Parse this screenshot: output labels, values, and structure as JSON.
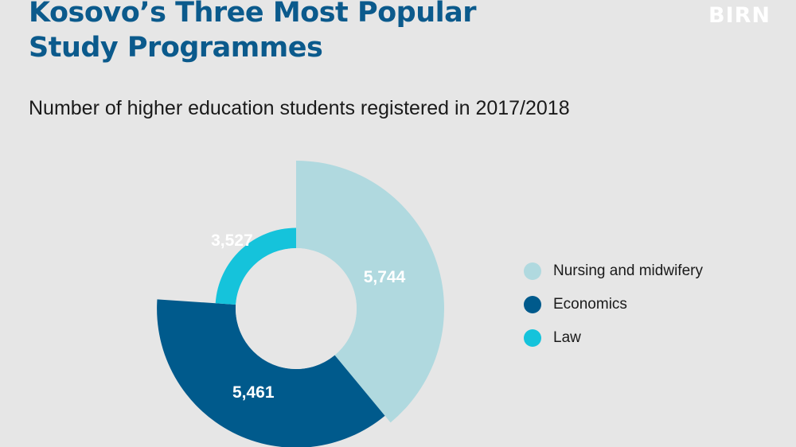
{
  "title_line1": "Kosovo’s Three Most Popular",
  "title_line2": "Study Programmes",
  "logo_text": "BIRN",
  "subtitle": "Number of higher education students registered in 2017/2018",
  "chart_data": {
    "type": "pie",
    "variant": "variable-radius donut",
    "title": "Kosovo’s Three Most Popular Study Programmes",
    "subtitle": "Number of higher education students registered in 2017/2018",
    "series": [
      {
        "name": "Nursing and midwifery",
        "value": 5744,
        "label": "5,744",
        "color": "#b0d9df"
      },
      {
        "name": "Economics",
        "value": 5461,
        "label": "5,461",
        "color": "#005a8c"
      },
      {
        "name": "Law",
        "value": 3527,
        "label": "3,527",
        "color": "#15c3db"
      }
    ],
    "legend_position": "right"
  }
}
